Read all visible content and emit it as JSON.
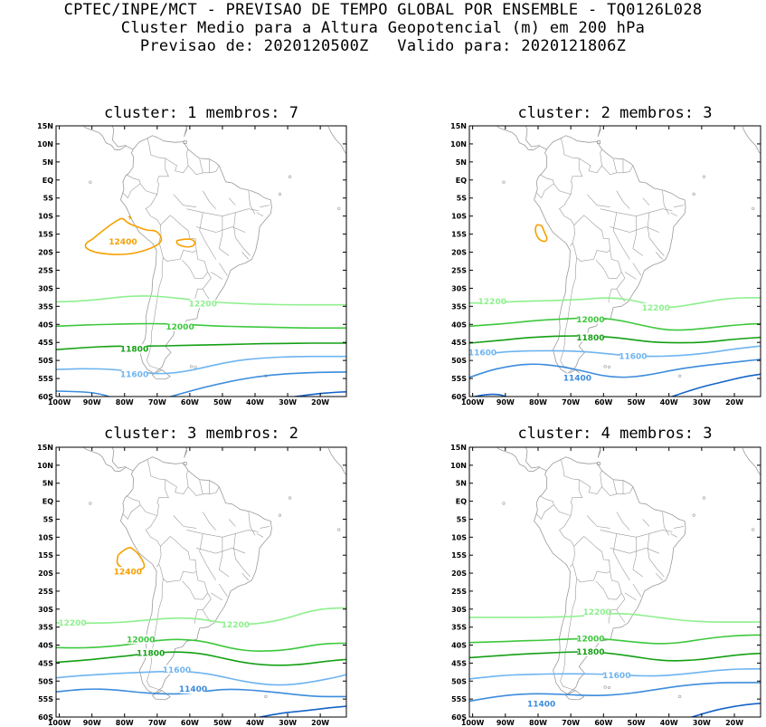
{
  "header": {
    "line1": "CPTEC/INPE/MCT - PREVISAO DE TEMPO GLOBAL POR ENSEMBLE - TQ0126L028",
    "line2": "Cluster Medio para a Altura Geopotencial (m) em 200 hPa",
    "line3": "Previsao de: 2020120500Z   Valido para: 2020121806Z"
  },
  "colors": {
    "c12400": "#f5a000",
    "c12200": "#8ef08e",
    "c12000": "#3cc83c",
    "c11800": "#14a014",
    "c11600": "#6eb4f0",
    "c11400": "#3c8cdc",
    "c11200": "#1464c8",
    "coast": "#9a9a9a"
  },
  "axes": {
    "x_labels": [
      "100W",
      "90W",
      "80W",
      "70W",
      "60W",
      "50W",
      "40W",
      "30W",
      "20W"
    ],
    "y_labels": [
      "15N",
      "10N",
      "5N",
      "EQ",
      "5S",
      "10S",
      "15S",
      "20S",
      "25S",
      "30S",
      "35S",
      "40S",
      "45S",
      "50S",
      "55S",
      "60S"
    ]
  },
  "panels": [
    {
      "title": "cluster: 1   membros: 7",
      "labels": [
        {
          "text": "12400",
          "lon": -80.5,
          "lat": -17,
          "color": "c12400"
        },
        {
          "text": "12200",
          "lon": -56,
          "lat": -34.2,
          "color": "c12200"
        },
        {
          "text": "12000",
          "lon": -63,
          "lat": -40.6,
          "color": "c12000"
        },
        {
          "text": "11800",
          "lon": -77,
          "lat": -46.8,
          "color": "c11800"
        },
        {
          "text": "11600",
          "lon": -77,
          "lat": -53.8,
          "color": "c11600"
        }
      ]
    },
    {
      "title": "cluster: 2   membros: 3",
      "labels": [
        {
          "text": "12200",
          "lon": -94,
          "lat": -33.6,
          "color": "c12200"
        },
        {
          "text": "12200",
          "lon": -44,
          "lat": -35.4,
          "color": "c12200"
        },
        {
          "text": "12000",
          "lon": -64,
          "lat": -38.6,
          "color": "c12000"
        },
        {
          "text": "11800",
          "lon": -64,
          "lat": -43.6,
          "color": "c11800"
        },
        {
          "text": "11600",
          "lon": -97,
          "lat": -47.8,
          "color": "c11600"
        },
        {
          "text": "11600",
          "lon": -51,
          "lat": -48.8,
          "color": "c11600"
        },
        {
          "text": "11400",
          "lon": -68,
          "lat": -54.8,
          "color": "c11400"
        }
      ]
    },
    {
      "title": "cluster: 3   membros: 2",
      "labels": [
        {
          "text": "12400",
          "lon": -79,
          "lat": -19.5,
          "color": "c12400"
        },
        {
          "text": "12200",
          "lon": -96,
          "lat": -33.8,
          "color": "c12200"
        },
        {
          "text": "12200",
          "lon": -46,
          "lat": -34.3,
          "color": "c12200"
        },
        {
          "text": "12000",
          "lon": -75,
          "lat": -38.4,
          "color": "c12000"
        },
        {
          "text": "11800",
          "lon": -72,
          "lat": -42.2,
          "color": "c11800"
        },
        {
          "text": "11600",
          "lon": -64,
          "lat": -46.8,
          "color": "c11600"
        },
        {
          "text": "11400",
          "lon": -59,
          "lat": -52.2,
          "color": "c11400"
        }
      ]
    },
    {
      "title": "cluster: 4   membros: 3",
      "labels": [
        {
          "text": "12200",
          "lon": -62,
          "lat": -30.8,
          "color": "c12200"
        },
        {
          "text": "12000",
          "lon": -64,
          "lat": -38.2,
          "color": "c12000"
        },
        {
          "text": "11800",
          "lon": -64,
          "lat": -41.8,
          "color": "c11800"
        },
        {
          "text": "11600",
          "lon": -56,
          "lat": -48.4,
          "color": "c11600"
        },
        {
          "text": "11400",
          "lon": -79,
          "lat": -56.3,
          "color": "c11400"
        }
      ]
    }
  ]
}
